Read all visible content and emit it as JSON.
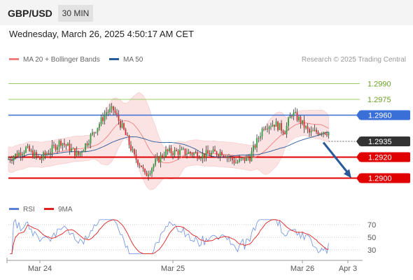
{
  "header": {
    "pair": "GBP/USD",
    "timeframe": "30 MIN"
  },
  "timestamp": "Wednesday, March 26, 2025 4:50:17 AM CET",
  "legend": {
    "ma20_bb": "MA 20 + Bollinger Bands",
    "ma50": "MA 50",
    "rsi": "RSI",
    "ma9": "9MA",
    "colors": {
      "ma20_bb": "#f08080",
      "ma50": "#2a5a9a",
      "rsi": "#5b7fd6",
      "ma9": "#e02020"
    }
  },
  "research": "Research © 2025 Trading Central",
  "chart_data": {
    "type": "candlestick",
    "y_range": [
      1.2883,
      1.3003
    ],
    "x_ticks": [
      {
        "label": "Mar 24",
        "index": 18
      },
      {
        "label": "Mar 25",
        "index": 94
      },
      {
        "label": "Mar 26",
        "index": 168
      },
      {
        "label": "Apr 3",
        "index": 194
      }
    ],
    "levels": [
      {
        "value": 1.299,
        "label": "1.2990",
        "color": "#7cb342",
        "kind": "target"
      },
      {
        "value": 1.2975,
        "label": "1.2975",
        "color": "#7cb342",
        "kind": "target"
      },
      {
        "value": 1.296,
        "label": "1.2960",
        "color": "#3a6fd8",
        "kind": "pivot"
      },
      {
        "value": 1.2935,
        "label": "1.2935",
        "color": "#333333",
        "kind": "last"
      },
      {
        "value": 1.292,
        "label": "1.2920",
        "color": "#e00000",
        "kind": "support"
      },
      {
        "value": 1.29,
        "label": "1.2900",
        "color": "#e00000",
        "kind": "support"
      }
    ],
    "arrow": {
      "from_index": 180,
      "from_value": 1.2934,
      "to_index": 196,
      "to_value": 1.29
    },
    "rsi": {
      "ticks": [
        {
          "label": "70",
          "value": 70
        },
        {
          "label": "50",
          "value": 50
        },
        {
          "label": "30",
          "value": 30
        }
      ]
    }
  }
}
